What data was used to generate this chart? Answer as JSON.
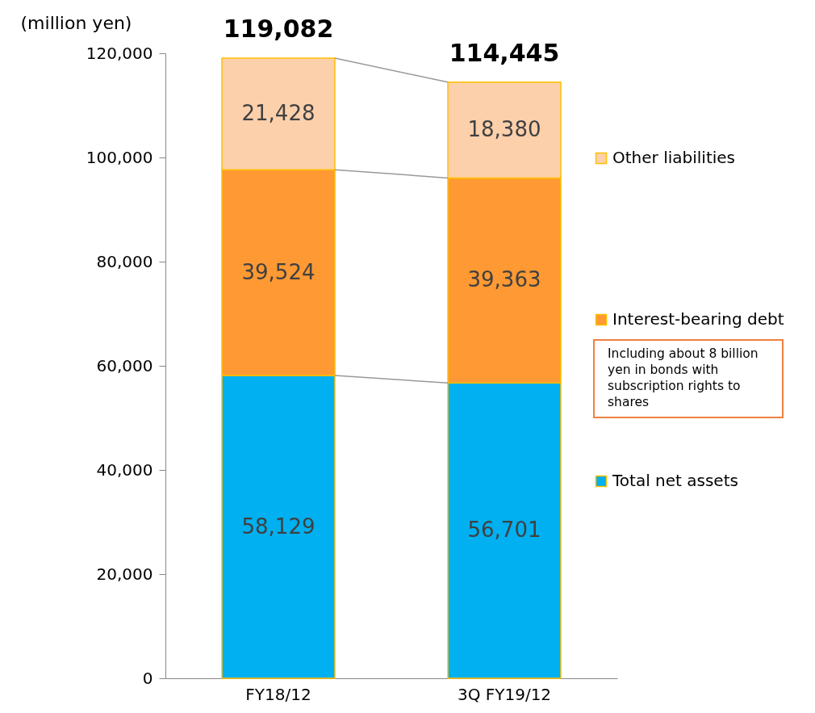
{
  "chart_data": {
    "type": "bar",
    "stacked": true,
    "ylabel": "(million yen)",
    "categories": [
      "FY18/12",
      "3Q FY19/12"
    ],
    "series": [
      {
        "name": "Total net assets",
        "color": "#00b0f0",
        "values": [
          58129,
          56701
        ],
        "value_labels": [
          "58,129",
          "56,701"
        ]
      },
      {
        "name": "Interest-bearing debt",
        "color": "#ff9933",
        "values": [
          39524,
          39363
        ],
        "value_labels": [
          "39,524",
          "39,363"
        ]
      },
      {
        "name": "Other liabilities",
        "color": "#fdd0ac",
        "values": [
          21428,
          18380
        ],
        "value_labels": [
          "21,428",
          "18,380"
        ]
      }
    ],
    "ylim": [
      0,
      120000
    ],
    "yticks": [
      {
        "value": 0,
        "label": "0"
      },
      {
        "value": 20000,
        "label": "20,000"
      },
      {
        "value": 40000,
        "label": "40,000"
      },
      {
        "value": 60000,
        "label": "60,000"
      },
      {
        "value": 80000,
        "label": "80,000"
      },
      {
        "value": 100000,
        "label": "100,000"
      },
      {
        "value": 120000,
        "label": "120,000"
      }
    ],
    "totals": [
      "119,082",
      "114,445"
    ],
    "legend": "right",
    "grid": false,
    "annotations": [
      "Including about 8 billion yen in bonds with subscription rights to shares"
    ]
  }
}
